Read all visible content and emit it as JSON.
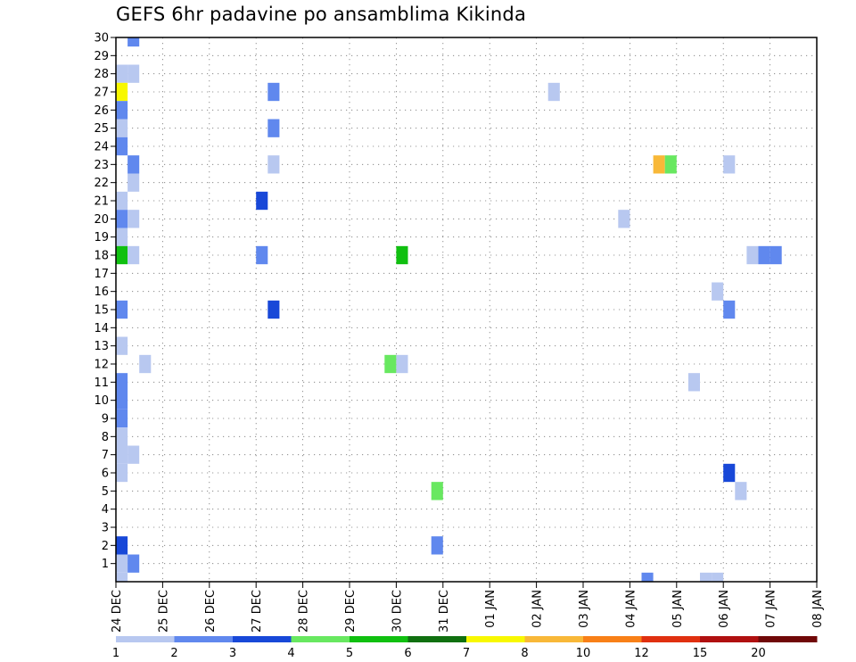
{
  "chart_data": {
    "type": "heatmap",
    "title": "GEFS 6hr padavine po ansamblima Kikinda",
    "xlabel": "",
    "ylabel": "",
    "x_ticks": [
      "24 DEC",
      "25 DEC",
      "26 DEC",
      "27 DEC",
      "28 DEC",
      "29 DEC",
      "30 DEC",
      "31 DEC",
      "01 JAN",
      "02 JAN",
      "03 JAN",
      "04 JAN",
      "05 JAN",
      "06 JAN",
      "07 JAN",
      "08 JAN"
    ],
    "xlim": [
      0,
      15
    ],
    "ylim": [
      0,
      30
    ],
    "y_ticks": [
      1,
      2,
      3,
      4,
      5,
      6,
      7,
      8,
      9,
      10,
      11,
      12,
      13,
      14,
      15,
      16,
      17,
      18,
      19,
      20,
      21,
      22,
      23,
      24,
      25,
      26,
      27,
      28,
      29,
      30
    ],
    "grid": true,
    "cell_width_days": 0.25,
    "colorbar": {
      "labels": [
        "1",
        "2",
        "3",
        "4",
        "5",
        "6",
        "7",
        "8",
        "10",
        "12",
        "15",
        "20"
      ],
      "colors": [
        "#b8c8f0",
        "#6088ee",
        "#1848d8",
        "#68e860",
        "#10c010",
        "#107010",
        "#f8f800",
        "#f8b838",
        "#f88018",
        "#e03010",
        "#b01010",
        "#700808"
      ]
    },
    "cells": [
      {
        "x": 0.25,
        "y": 30,
        "color": "#6088ee"
      },
      {
        "x": 0,
        "y": 28,
        "color": "#b8c8f0"
      },
      {
        "x": 0.25,
        "y": 28,
        "color": "#b8c8f0"
      },
      {
        "x": 0,
        "y": 27,
        "color": "#f8f800"
      },
      {
        "x": 3.25,
        "y": 27,
        "color": "#6088ee"
      },
      {
        "x": 9.25,
        "y": 27,
        "color": "#b8c8f0"
      },
      {
        "x": 0,
        "y": 26,
        "color": "#6088ee"
      },
      {
        "x": 0,
        "y": 25,
        "color": "#b8c8f0"
      },
      {
        "x": 3.25,
        "y": 25,
        "color": "#6088ee"
      },
      {
        "x": 0,
        "y": 24,
        "color": "#6088ee"
      },
      {
        "x": 0.25,
        "y": 23,
        "color": "#6088ee"
      },
      {
        "x": 3.25,
        "y": 23,
        "color": "#b8c8f0"
      },
      {
        "x": 11.5,
        "y": 23,
        "color": "#f8b838"
      },
      {
        "x": 11.75,
        "y": 23,
        "color": "#68e860"
      },
      {
        "x": 13,
        "y": 23,
        "color": "#b8c8f0"
      },
      {
        "x": 0.25,
        "y": 22,
        "color": "#b8c8f0"
      },
      {
        "x": 0,
        "y": 21,
        "color": "#b8c8f0"
      },
      {
        "x": 3,
        "y": 21,
        "color": "#1848d8"
      },
      {
        "x": 0,
        "y": 20,
        "color": "#6088ee"
      },
      {
        "x": 0.25,
        "y": 20,
        "color": "#b8c8f0"
      },
      {
        "x": 10.75,
        "y": 20,
        "color": "#b8c8f0"
      },
      {
        "x": 0,
        "y": 19,
        "color": "#b8c8f0"
      },
      {
        "x": 0,
        "y": 18,
        "color": "#10c010"
      },
      {
        "x": 0.25,
        "y": 18,
        "color": "#b8c8f0"
      },
      {
        "x": 3,
        "y": 18,
        "color": "#6088ee"
      },
      {
        "x": 6,
        "y": 18,
        "color": "#10c010"
      },
      {
        "x": 13.5,
        "y": 18,
        "color": "#b8c8f0"
      },
      {
        "x": 13.75,
        "y": 18,
        "color": "#6088ee"
      },
      {
        "x": 14,
        "y": 18,
        "color": "#6088ee"
      },
      {
        "x": 12.75,
        "y": 16,
        "color": "#b8c8f0"
      },
      {
        "x": 0,
        "y": 15,
        "color": "#6088ee"
      },
      {
        "x": 3.25,
        "y": 15,
        "color": "#1848d8"
      },
      {
        "x": 13,
        "y": 15,
        "color": "#6088ee"
      },
      {
        "x": 0,
        "y": 13,
        "color": "#b8c8f0"
      },
      {
        "x": 0.5,
        "y": 12,
        "color": "#b8c8f0"
      },
      {
        "x": 5.75,
        "y": 12,
        "color": "#68e860"
      },
      {
        "x": 6,
        "y": 12,
        "color": "#b8c8f0"
      },
      {
        "x": 0,
        "y": 11,
        "color": "#6088ee"
      },
      {
        "x": 12.25,
        "y": 11,
        "color": "#b8c8f0"
      },
      {
        "x": 0,
        "y": 10,
        "color": "#6088ee"
      },
      {
        "x": 0,
        "y": 9,
        "color": "#6088ee"
      },
      {
        "x": 0,
        "y": 8,
        "color": "#b8c8f0"
      },
      {
        "x": 0,
        "y": 7,
        "color": "#b8c8f0"
      },
      {
        "x": 0.25,
        "y": 7,
        "color": "#b8c8f0"
      },
      {
        "x": 0,
        "y": 6,
        "color": "#b8c8f0"
      },
      {
        "x": 13,
        "y": 6,
        "color": "#1848d8"
      },
      {
        "x": 6.75,
        "y": 5,
        "color": "#68e860"
      },
      {
        "x": 13.25,
        "y": 5,
        "color": "#b8c8f0"
      },
      {
        "x": 0,
        "y": 2,
        "color": "#1848d8"
      },
      {
        "x": 6.75,
        "y": 2,
        "color": "#6088ee"
      },
      {
        "x": 0,
        "y": 1,
        "color": "#b8c8f0"
      },
      {
        "x": 0.25,
        "y": 1,
        "color": "#6088ee"
      },
      {
        "x": 0,
        "y": 0,
        "color": "#b8c8f0"
      },
      {
        "x": 11.25,
        "y": 0,
        "color": "#6088ee"
      },
      {
        "x": 12.5,
        "y": 0,
        "color": "#b8c8f0"
      },
      {
        "x": 12.75,
        "y": 0,
        "color": "#b8c8f0"
      }
    ]
  }
}
